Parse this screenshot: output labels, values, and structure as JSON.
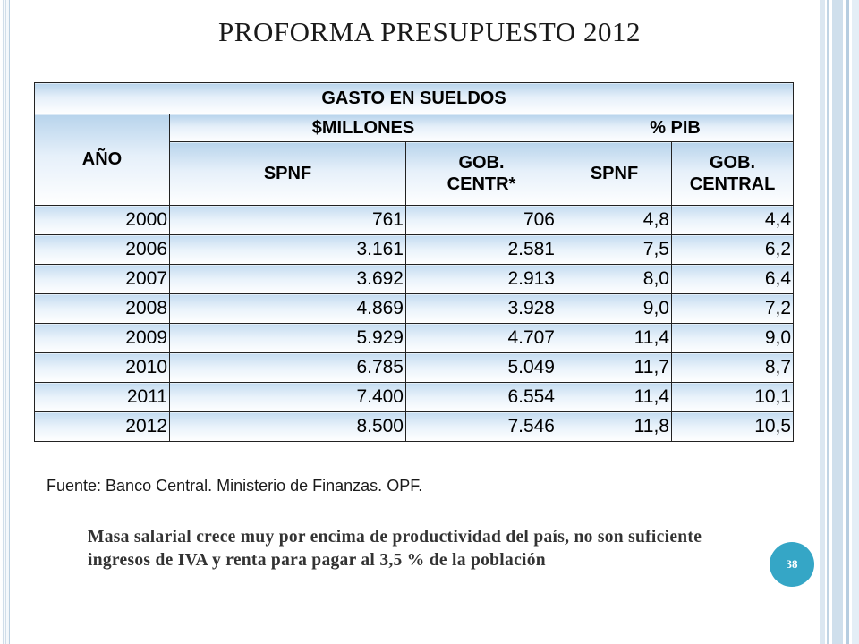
{
  "slide": {
    "title": "PROFORMA PRESUPUESTO 2012",
    "page_number": "38"
  },
  "table": {
    "caption": "GASTO EN SUELDOS",
    "col_year": "AÑO",
    "group_millions": "$MILLONES",
    "group_pib": "% PIB",
    "sub_spnf_1": "SPNF",
    "sub_gob_1_line1": "GOB.",
    "sub_gob_1_line2": "CENTR*",
    "sub_spnf_2": "SPNF",
    "sub_gob_2_line1": "GOB.",
    "sub_gob_2_line2": "CENTRAL",
    "rows": [
      [
        "2000",
        "761",
        "706",
        "4,8",
        "4,4"
      ],
      [
        "2006",
        "3.161",
        "2.581",
        "7,5",
        "6,2"
      ],
      [
        "2007",
        "3.692",
        "2.913",
        "8,0",
        "6,4"
      ],
      [
        "2008",
        "4.869",
        "3.928",
        "9,0",
        "7,2"
      ],
      [
        "2009",
        "5.929",
        "4.707",
        "11,4",
        "9,0"
      ],
      [
        "2010",
        "6.785",
        "5.049",
        "11,7",
        "8,7"
      ],
      [
        "2011",
        "7.400",
        "6.554",
        "11,4",
        "10,1"
      ],
      [
        "2012",
        "8.500",
        "7.546",
        "11,8",
        "10,5"
      ]
    ]
  },
  "footer": {
    "source": "Fuente: Banco Central. Ministerio de Finanzas. OPF.",
    "summary": "Masa salarial crece muy por encima de productividad del país, no son suficiente ingresos de IVA y renta para pagar al 3,5 % de la población"
  },
  "colors": {
    "accent": "#35a6c6",
    "header_gradient_top": "#b8d4ec"
  }
}
